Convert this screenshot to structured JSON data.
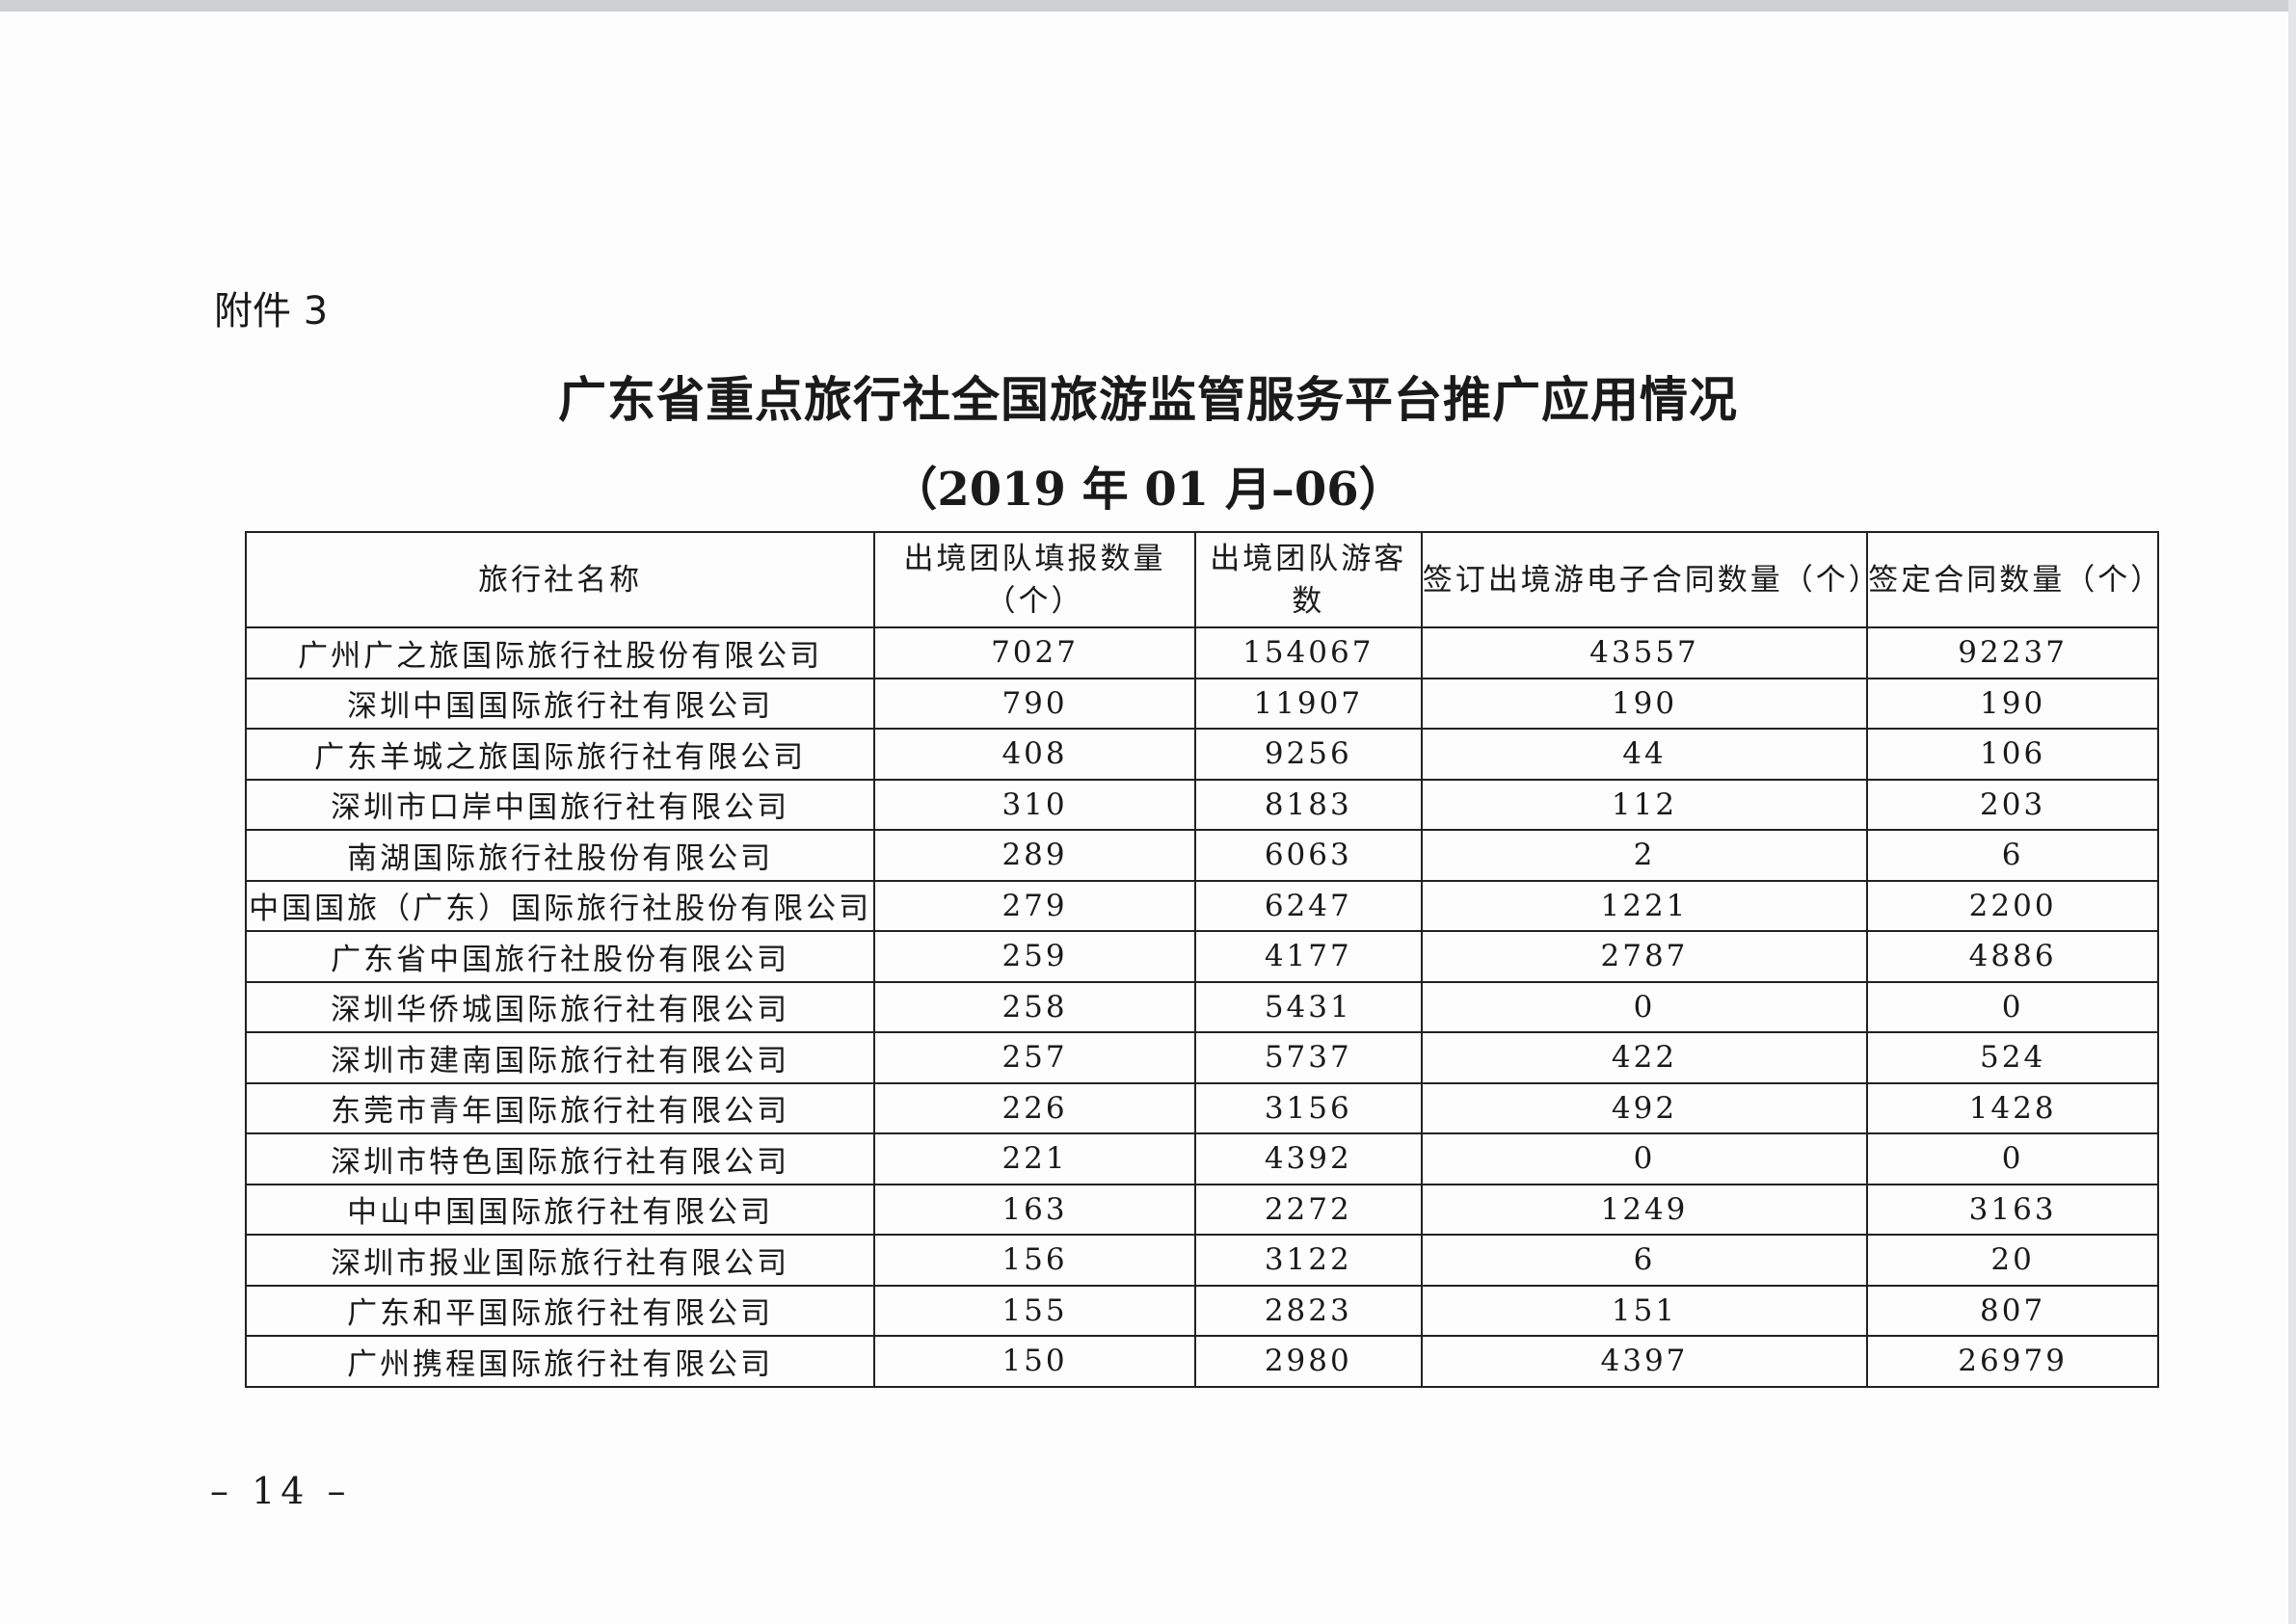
{
  "attachment_label": "附件 3",
  "title": "广东省重点旅行社全国旅游监管服务平台推广应用情况",
  "subtitle": "（2019 年 01 月–06）",
  "table": {
    "headers": [
      "旅行社名称",
      "出境团队填报数量（个）",
      "出境团队游客数",
      "签订出境游电子合同数量（个）",
      "签定合同数量（个）"
    ],
    "rows": [
      [
        "广州广之旅国际旅行社股份有限公司",
        "7027",
        "154067",
        "43557",
        "92237"
      ],
      [
        "深圳中国国际旅行社有限公司",
        "790",
        "11907",
        "190",
        "190"
      ],
      [
        "广东羊城之旅国际旅行社有限公司",
        "408",
        "9256",
        "44",
        "106"
      ],
      [
        "深圳市口岸中国旅行社有限公司",
        "310",
        "8183",
        "112",
        "203"
      ],
      [
        "南湖国际旅行社股份有限公司",
        "289",
        "6063",
        "2",
        "6"
      ],
      [
        "中国国旅（广东）国际旅行社股份有限公司",
        "279",
        "6247",
        "1221",
        "2200"
      ],
      [
        "广东省中国旅行社股份有限公司",
        "259",
        "4177",
        "2787",
        "4886"
      ],
      [
        "深圳华侨城国际旅行社有限公司",
        "258",
        "5431",
        "0",
        "0"
      ],
      [
        "深圳市建南国际旅行社有限公司",
        "257",
        "5737",
        "422",
        "524"
      ],
      [
        "东莞市青年国际旅行社有限公司",
        "226",
        "3156",
        "492",
        "1428"
      ],
      [
        "深圳市特色国际旅行社有限公司",
        "221",
        "4392",
        "0",
        "0"
      ],
      [
        "中山中国国际旅行社有限公司",
        "163",
        "2272",
        "1249",
        "3163"
      ],
      [
        "深圳市报业国际旅行社有限公司",
        "156",
        "3122",
        "6",
        "20"
      ],
      [
        "广东和平国际旅行社有限公司",
        "155",
        "2823",
        "151",
        "807"
      ],
      [
        "广州携程国际旅行社有限公司",
        "150",
        "2980",
        "4397",
        "26979"
      ]
    ]
  },
  "page_number": "– 14 –"
}
